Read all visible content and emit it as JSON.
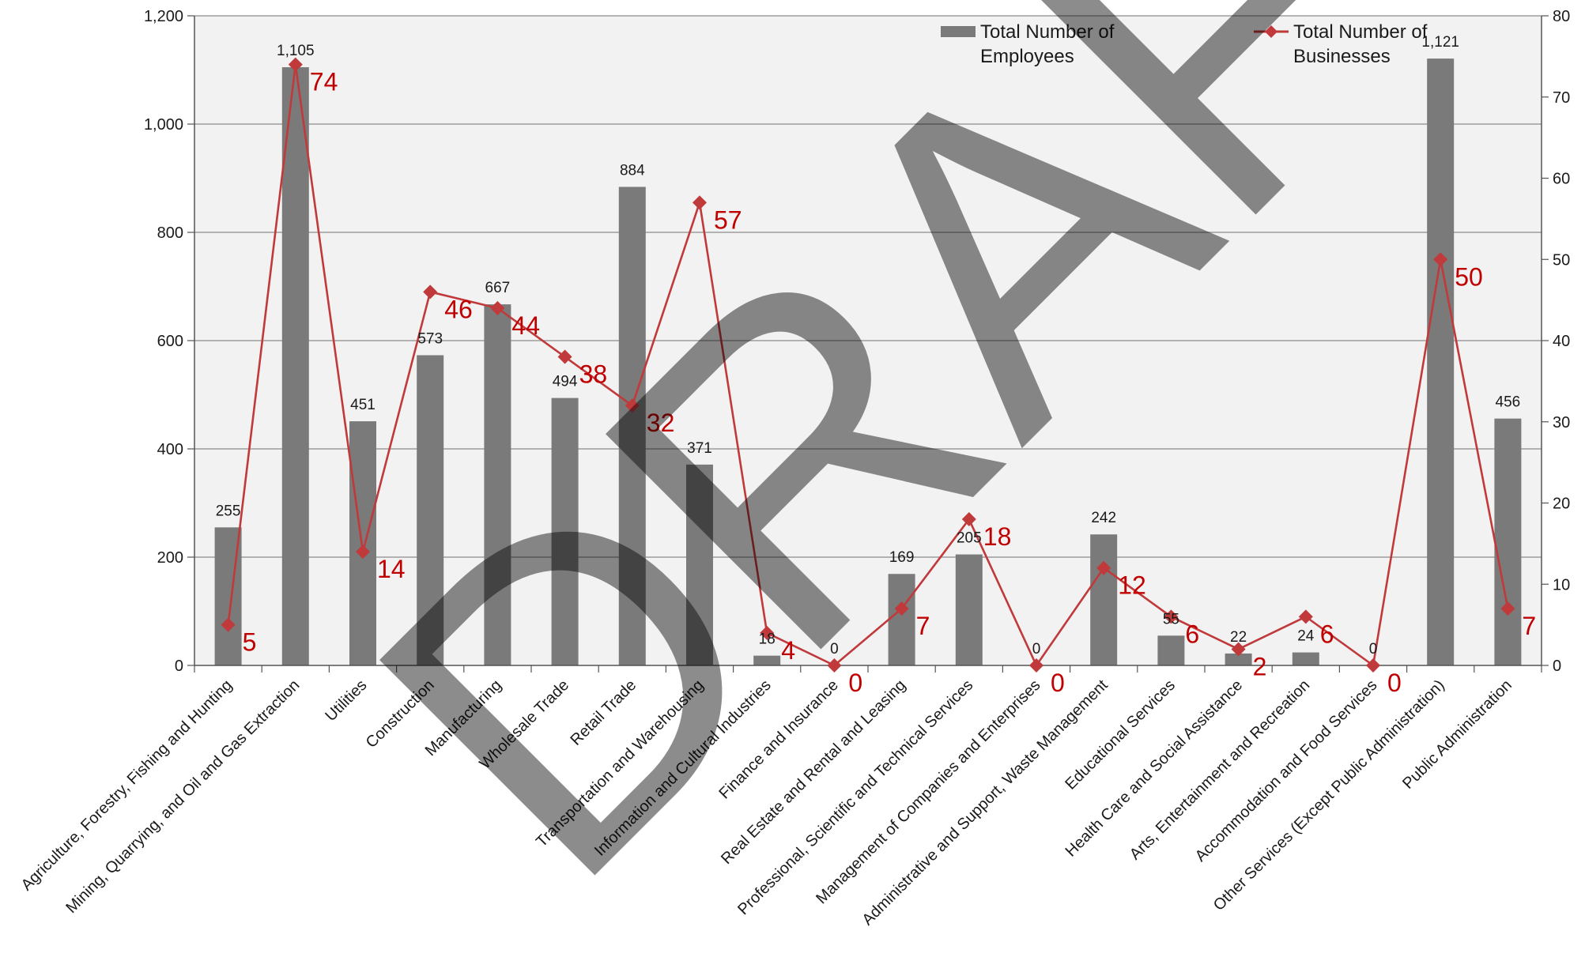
{
  "chart_data": {
    "type": "bar",
    "categories": [
      "Agriculture, Forestry, Fishing and Hunting",
      "Mining, Quarrying, and Oil and Gas Extraction",
      "Utilities",
      "Construction",
      "Manufacturing",
      "Wholesale Trade",
      "Retail Trade",
      "Transportation and Warehousing",
      "Information and Cultural Industries",
      "Finance and Insurance",
      "Real Estate and Rental and Leasing",
      "Professional, Scientific and Technical Services",
      "Management of Companies and Enterprises",
      "Administrative and Support, Waste Management",
      "Educational Services",
      "Health Care and Social Assistance",
      "Arts, Entertainment and Recreation",
      "Accommodation and Food Services",
      "Other Services (Except Public Administration)",
      "Public Administration"
    ],
    "series": [
      {
        "name": "Total Number of Employees",
        "type": "bar",
        "axis": "left",
        "values": [
          255,
          1105,
          451,
          573,
          667,
          494,
          884,
          371,
          18,
          0,
          169,
          205,
          0,
          242,
          55,
          22,
          24,
          0,
          1121,
          456
        ],
        "labels": [
          "255",
          "1,105",
          "451",
          "573",
          "667",
          "494",
          "884",
          "371",
          "18",
          "0",
          "169",
          "205",
          "0",
          "242",
          "55",
          "22",
          "24",
          "0",
          "1,121",
          "456"
        ],
        "color": "#7a7a7a"
      },
      {
        "name": "Total Number of Businesses",
        "type": "line",
        "axis": "right",
        "values": [
          5,
          74,
          14,
          46,
          44,
          38,
          32,
          57,
          4,
          0,
          7,
          18,
          0,
          12,
          6,
          2,
          6,
          0,
          50,
          7
        ],
        "color": "#c0393b"
      }
    ],
    "legend": {
      "bars": [
        "Total Number of",
        "Employees"
      ],
      "line": [
        "Total Number of",
        "Businesses"
      ],
      "position": "top-right"
    },
    "y_left": {
      "ylim": [
        0,
        1200
      ],
      "ticks": [
        "0",
        "200",
        "400",
        "600",
        "800",
        "1,000",
        "1,200"
      ]
    },
    "y_right": {
      "ylim": [
        0,
        80
      ],
      "ticks": [
        "0",
        "10",
        "20",
        "30",
        "40",
        "50",
        "60",
        "70",
        "80"
      ]
    },
    "grid": true,
    "watermark": "DRAFT",
    "colors": {
      "plot_bg": "#f2f2f2",
      "grid": "#8c8c8c",
      "bar": "#7a7a7a",
      "line": "#c0393b",
      "line_label": "#c00000"
    }
  }
}
